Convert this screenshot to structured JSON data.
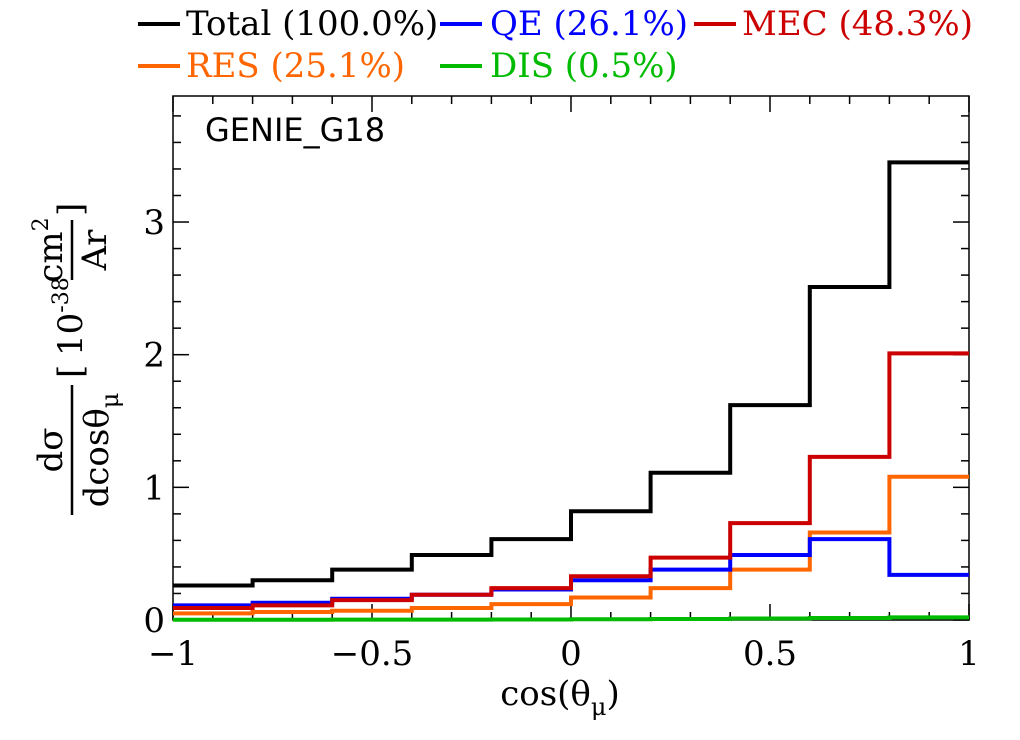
{
  "chart_data": {
    "type": "line",
    "step": true,
    "tag": "GENIE_G18",
    "xlabel": {
      "base": "cos(θ",
      "sub": "μ",
      "close": ")"
    },
    "ylabel": {
      "numerator": "dσ",
      "denominator_base": "dcosθ",
      "denominator_sub": "μ",
      "unit_base": "10",
      "unit_exp": "-38",
      "unit_num_base": "cm",
      "unit_num_exp": "2",
      "unit_den": "Ar"
    },
    "xlim": [
      -1,
      1
    ],
    "ylim": [
      0,
      3.95
    ],
    "xticks": [
      -1,
      -0.5,
      0,
      0.5,
      1
    ],
    "xtick_labels": [
      "−1",
      "−0.5",
      "0",
      "0.5",
      "1"
    ],
    "yticks": [
      0,
      1,
      2,
      3
    ],
    "ytick_labels": [
      "0",
      "1",
      "2",
      "3"
    ],
    "bin_edges": [
      -1,
      -0.8,
      -0.6,
      -0.4,
      -0.2,
      0,
      0.2,
      0.4,
      0.6,
      0.8,
      1
    ],
    "series": [
      {
        "name": "Total (100.0%)",
        "color": "#000000",
        "values": [
          0.26,
          0.3,
          0.38,
          0.49,
          0.61,
          0.82,
          1.11,
          1.62,
          2.51,
          3.45
        ]
      },
      {
        "name": "QE (26.1%)",
        "color": "#0000ff",
        "values": [
          0.11,
          0.13,
          0.16,
          0.19,
          0.23,
          0.3,
          0.38,
          0.49,
          0.61,
          0.34
        ]
      },
      {
        "name": "MEC (48.3%)",
        "color": "#cc0000",
        "values": [
          0.09,
          0.11,
          0.15,
          0.19,
          0.24,
          0.33,
          0.47,
          0.73,
          1.23,
          2.01
        ]
      },
      {
        "name": "RES (25.1%)",
        "color": "#ff6600",
        "values": [
          0.05,
          0.06,
          0.07,
          0.09,
          0.12,
          0.17,
          0.24,
          0.38,
          0.66,
          1.08
        ]
      },
      {
        "name": "DIS (0.5%)",
        "color": "#00bb00",
        "values": [
          0.002,
          0.002,
          0.003,
          0.003,
          0.004,
          0.006,
          0.008,
          0.011,
          0.015,
          0.02
        ]
      }
    ],
    "legend_position": "top"
  }
}
